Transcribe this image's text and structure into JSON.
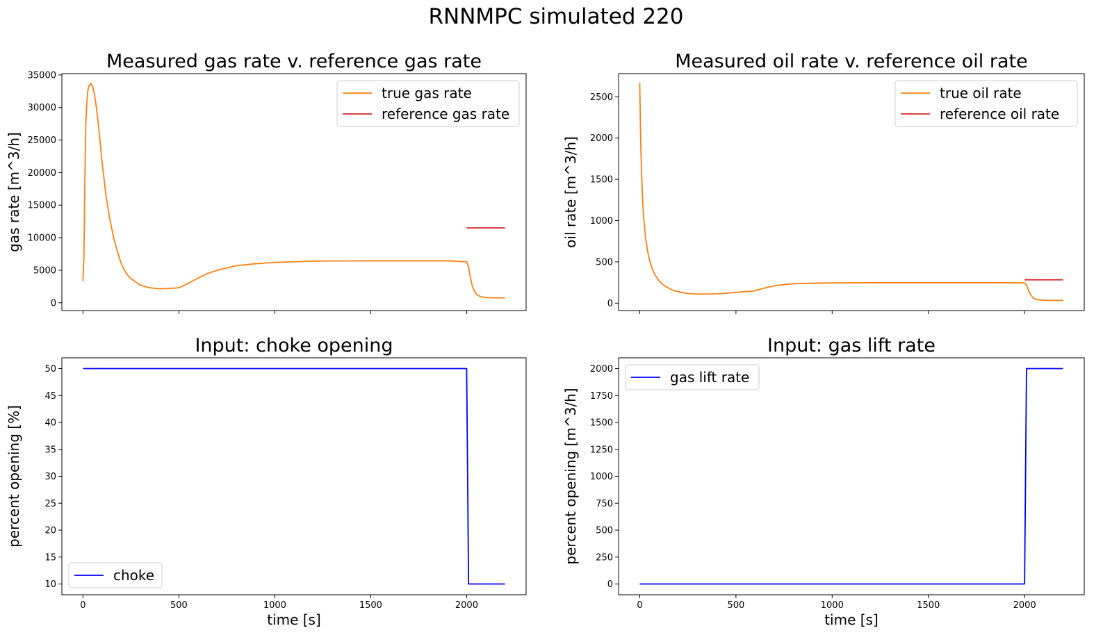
{
  "figure": {
    "suptitle": "RNNMPC simulated 220"
  },
  "chart_data": [
    {
      "type": "line",
      "title": "Measured gas rate v. reference gas rate",
      "xlabel": "",
      "ylabel": "gas rate [m^3/h]",
      "xlim": [
        -110,
        2310
      ],
      "ylim": [
        -1200,
        35200
      ],
      "xticks": [
        0,
        500,
        1000,
        1500,
        2000
      ],
      "xtick_labels_visible": false,
      "yticks": [
        0,
        5000,
        10000,
        15000,
        20000,
        25000,
        30000,
        35000
      ],
      "legend": "top-right",
      "series": [
        {
          "name": "true gas rate",
          "color": "#ff7f0e",
          "x": [
            0,
            5,
            10,
            15,
            20,
            25,
            30,
            40,
            50,
            60,
            70,
            80,
            90,
            100,
            120,
            140,
            160,
            180,
            200,
            220,
            240,
            260,
            280,
            300,
            350,
            400,
            450,
            500,
            550,
            600,
            650,
            700,
            800,
            900,
            1000,
            1100,
            1200,
            1300,
            1400,
            1500,
            1600,
            1700,
            1800,
            1900,
            2000,
            2010,
            2020,
            2030,
            2040,
            2050,
            2060,
            2080,
            2100,
            2140,
            2180,
            2200
          ],
          "y": [
            3300,
            7000,
            19000,
            27500,
            30500,
            32500,
            33200,
            33700,
            33300,
            32000,
            30000,
            27500,
            24500,
            21500,
            16500,
            12800,
            10000,
            7800,
            6000,
            4800,
            4000,
            3500,
            3100,
            2700,
            2300,
            2150,
            2200,
            2300,
            3000,
            3800,
            4500,
            5000,
            5700,
            6000,
            6200,
            6300,
            6400,
            6420,
            6430,
            6440,
            6440,
            6440,
            6440,
            6440,
            6300,
            5500,
            3800,
            2500,
            1800,
            1400,
            1100,
            900,
            800,
            760,
            750,
            750
          ]
        },
        {
          "name": "reference gas rate",
          "color": "#d62728",
          "x": [
            2000,
            2200
          ],
          "y": [
            11500,
            11500
          ]
        }
      ]
    },
    {
      "type": "line",
      "title": "Measured oil rate v. reference oil rate",
      "xlabel": "",
      "ylabel": "oil rate [m^3/h]",
      "xlim": [
        -110,
        2310
      ],
      "ylim": [
        -90,
        2780
      ],
      "xticks": [
        0,
        500,
        1000,
        1500,
        2000
      ],
      "xtick_labels_visible": false,
      "yticks": [
        0,
        500,
        1000,
        1500,
        2000,
        2500
      ],
      "legend": "top-right",
      "series": [
        {
          "name": "true oil rate",
          "color": "#ff7f0e",
          "x": [
            0,
            5,
            10,
            15,
            20,
            30,
            40,
            50,
            60,
            70,
            80,
            100,
            120,
            140,
            160,
            180,
            200,
            220,
            240,
            260,
            280,
            300,
            350,
            400,
            450,
            500,
            550,
            600,
            650,
            700,
            750,
            800,
            900,
            1000,
            1100,
            1200,
            1300,
            1400,
            1500,
            1600,
            1700,
            1800,
            1900,
            2000,
            2010,
            2020,
            2030,
            2040,
            2050,
            2060,
            2080,
            2100,
            2140,
            2180,
            2200
          ],
          "y": [
            2670,
            1950,
            1550,
            1250,
            1050,
            800,
            640,
            530,
            450,
            390,
            340,
            270,
            225,
            195,
            170,
            150,
            140,
            128,
            120,
            115,
            112,
            111,
            110,
            113,
            120,
            130,
            140,
            150,
            185,
            210,
            225,
            235,
            242,
            245,
            246,
            247,
            247,
            247,
            247,
            247,
            247,
            247,
            247,
            245,
            220,
            160,
            110,
            75,
            55,
            45,
            38,
            35,
            33,
            33,
            33
          ]
        },
        {
          "name": "reference oil rate",
          "color": "#d62728",
          "x": [
            2000,
            2200
          ],
          "y": [
            283,
            283
          ]
        }
      ]
    },
    {
      "type": "line",
      "title": "Input: choke opening",
      "xlabel": "time [s]",
      "ylabel": "percent opening [%]",
      "xlim": [
        -110,
        2310
      ],
      "ylim": [
        8,
        52
      ],
      "xticks": [
        0,
        500,
        1000,
        1500,
        2000
      ],
      "xtick_labels_visible": true,
      "yticks": [
        10,
        15,
        20,
        25,
        30,
        35,
        40,
        45,
        50
      ],
      "legend": "bottom-left",
      "series": [
        {
          "name": "choke",
          "color": "#0000ff",
          "x": [
            0,
            1990,
            2000,
            2010,
            2200
          ],
          "y": [
            50,
            50,
            50,
            10,
            10
          ]
        }
      ]
    },
    {
      "type": "line",
      "title": "Input: gas lift rate",
      "xlabel": "time [s]",
      "ylabel": "percent opening [m^3/h]",
      "xlim": [
        -110,
        2310
      ],
      "ylim": [
        -100,
        2100
      ],
      "xticks": [
        0,
        500,
        1000,
        1500,
        2000
      ],
      "xtick_labels_visible": true,
      "yticks": [
        0,
        250,
        500,
        750,
        1000,
        1250,
        1500,
        1750,
        2000
      ],
      "legend": "top-left",
      "series": [
        {
          "name": "gas lift rate",
          "color": "#0000ff",
          "x": [
            0,
            1995,
            2000,
            2010,
            2200
          ],
          "y": [
            0,
            0,
            0,
            2000,
            2000
          ]
        }
      ]
    }
  ]
}
